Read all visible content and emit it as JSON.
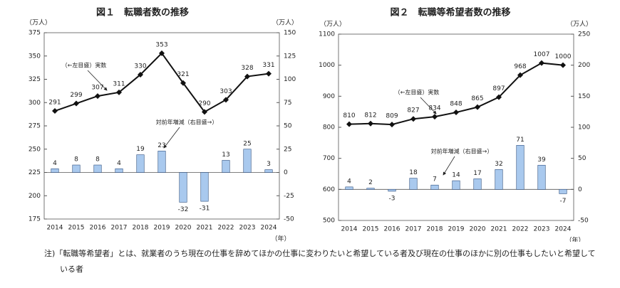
{
  "chart_data": [
    {
      "type": "combo",
      "title": "図１　転職者数の推移",
      "y_unit": "（万人）",
      "y2_unit": "（万人）",
      "x_unit": "（年）",
      "categories": [
        "2014",
        "2015",
        "2016",
        "2017",
        "2018",
        "2019",
        "2020",
        "2021",
        "2022",
        "2023",
        "2024"
      ],
      "series": [
        {
          "name": "（←左目盛）実数",
          "type": "line",
          "color": "#111111",
          "values": [
            291,
            299,
            307,
            311,
            330,
            353,
            321,
            290,
            303,
            328,
            331
          ]
        },
        {
          "name": "対前年増減（右目盛→）",
          "type": "bar",
          "axis": "y2",
          "color": "#a9c9ee",
          "values": [
            4,
            8,
            8,
            4,
            19,
            23,
            -32,
            -31,
            13,
            25,
            3
          ]
        }
      ],
      "ylim": [
        175,
        375
      ],
      "yticks": [
        175,
        200,
        225,
        250,
        275,
        300,
        325,
        350,
        375
      ],
      "y2lim": [
        -50,
        150
      ],
      "y2ticks": [
        -50,
        -25,
        0,
        25,
        50,
        75,
        100,
        125,
        150
      ]
    },
    {
      "type": "combo",
      "title": "図２　転職等希望者数の推移",
      "y_unit": "（万人）",
      "y2_unit": "（万人）",
      "x_unit": "（年）",
      "categories": [
        "2014",
        "2015",
        "2016",
        "2017",
        "2018",
        "2019",
        "2020",
        "2021",
        "2022",
        "2023",
        "2024"
      ],
      "series": [
        {
          "name": "（←左目盛）実数",
          "type": "line",
          "color": "#111111",
          "values": [
            810,
            812,
            809,
            827,
            834,
            848,
            865,
            897,
            968,
            1007,
            1000
          ]
        },
        {
          "name": "対前年増減（右目盛→）",
          "type": "bar",
          "axis": "y2",
          "color": "#a9c9ee",
          "values": [
            4,
            2,
            -3,
            18,
            7,
            14,
            17,
            32,
            71,
            39,
            -7
          ]
        }
      ],
      "ylim": [
        500,
        1100
      ],
      "yticks": [
        500,
        600,
        700,
        800,
        900,
        1000,
        1100
      ],
      "y2lim": [
        -50,
        250
      ],
      "y2ticks": [
        -50,
        0,
        50,
        100,
        150,
        200,
        250
      ]
    }
  ],
  "note": "注)「転職等希望者」とは、就業者のうち現在の仕事を辞めてほかの仕事に変わりたいと希望している者及び現在の仕事のほかに別の仕事もしたいと希望している者"
}
